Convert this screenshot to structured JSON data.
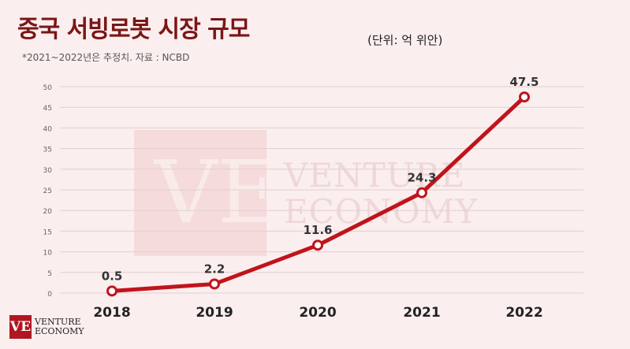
{
  "header": {
    "title": "중국 서빙로봇 시장 규모",
    "unit": "(단위: 억 위안)",
    "note": "*2021~2022년은 추정치. 자료 : NCBD"
  },
  "brand": {
    "mark": "VE",
    "line1": "VENTURE",
    "line2": "ECONOMY"
  },
  "colors": {
    "line": "#c0141c",
    "marker_fill": "#ffffff",
    "background": "#fbeeee",
    "title": "#7a1616"
  },
  "chart_data": {
    "type": "line",
    "categories": [
      "2018",
      "2019",
      "2020",
      "2021",
      "2022"
    ],
    "values": [
      0.5,
      2.2,
      11.6,
      24.3,
      47.5
    ],
    "value_labels": [
      "0.5",
      "2.2",
      "11.6",
      "24.3",
      "47.5"
    ],
    "ylim": [
      0,
      50
    ],
    "yticks": [
      0,
      5,
      10,
      15,
      20,
      25,
      30,
      35,
      40,
      45,
      50
    ],
    "grid": true
  }
}
